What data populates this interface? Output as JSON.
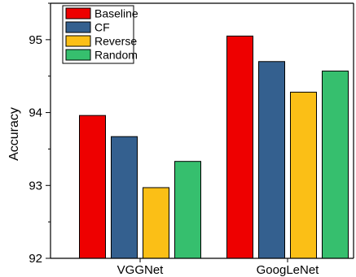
{
  "chart_data": {
    "type": "bar",
    "categories": [
      "VGGNet",
      "GoogLeNet"
    ],
    "series": [
      {
        "name": "Baseline",
        "color": "#ee0000",
        "values": [
          93.96,
          95.05
        ]
      },
      {
        "name": "CF",
        "color": "#34608f",
        "values": [
          93.67,
          94.7
        ]
      },
      {
        "name": "Reverse",
        "color": "#fbbf16",
        "values": [
          92.97,
          94.28
        ]
      },
      {
        "name": "Random",
        "color": "#36bf6e",
        "values": [
          93.33,
          94.57
        ]
      }
    ],
    "ylabel": "Accuracy",
    "ylim": [
      92,
      95.5
    ],
    "yticks": [
      92,
      93,
      94,
      95
    ],
    "legend_position": "top-left",
    "grid": false
  }
}
